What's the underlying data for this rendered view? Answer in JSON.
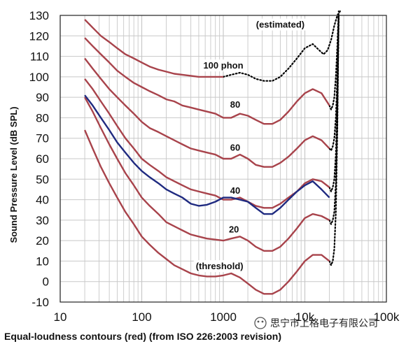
{
  "chart_data": {
    "type": "line",
    "xlabel": "Equal-loudness contours (red) (from ISO 226:2003 revision)",
    "ylabel": "Sound Pressure Level (dB SPL)",
    "x_scale": "log",
    "xlim": [
      10,
      100000
    ],
    "ylim": [
      -10,
      130
    ],
    "x_ticks": [
      {
        "value": 10,
        "label": "10"
      },
      {
        "value": 100,
        "label": "100"
      },
      {
        "value": 1000,
        "label": "1000"
      },
      {
        "value": 10000,
        "label": "10k"
      },
      {
        "value": 100000,
        "label": "100k"
      }
    ],
    "y_ticks": [
      -10,
      0,
      10,
      20,
      30,
      40,
      50,
      60,
      70,
      80,
      90,
      100,
      110,
      120,
      130
    ],
    "grid": true,
    "colors": {
      "contour": "#a8434b",
      "extra_curve": "#1f2a80",
      "estimated": "#000000",
      "grid": "#c8c8c8"
    },
    "series": [
      {
        "name": "(threshold)",
        "x": [
          20,
          25,
          31.5,
          40,
          50,
          63,
          80,
          100,
          125,
          160,
          200,
          250,
          315,
          400,
          500,
          630,
          800,
          1000,
          1250,
          1600,
          2000,
          2500,
          3150,
          4000,
          5000,
          6300,
          8000,
          10000,
          12500,
          16000,
          20000
        ],
        "y": [
          74,
          65,
          56,
          48,
          41,
          34,
          28,
          22,
          18,
          14,
          11,
          8,
          6,
          4,
          3,
          2.5,
          2.5,
          3,
          4,
          2,
          -1,
          -4,
          -6,
          -6,
          -4,
          0,
          5,
          10,
          13,
          13,
          10
        ]
      },
      {
        "name": "20",
        "x": [
          20,
          25,
          31.5,
          40,
          50,
          63,
          80,
          100,
          125,
          160,
          200,
          250,
          315,
          400,
          500,
          630,
          800,
          1000,
          1250,
          1600,
          2000,
          2500,
          3150,
          4000,
          5000,
          6300,
          8000,
          10000,
          12500,
          16000,
          20000
        ],
        "y": [
          90,
          83,
          75,
          67,
          60,
          53,
          47,
          41,
          37,
          33,
          29,
          27,
          25,
          23,
          22,
          21,
          20.5,
          20,
          21,
          22,
          20,
          17,
          15,
          15,
          17,
          21,
          26,
          31,
          33,
          32,
          30
        ]
      },
      {
        "name": "40",
        "x": [
          20,
          25,
          31.5,
          40,
          50,
          63,
          80,
          100,
          125,
          160,
          200,
          250,
          315,
          400,
          500,
          630,
          800,
          1000,
          1250,
          1600,
          2000,
          2500,
          3150,
          4000,
          5000,
          6300,
          8000,
          10000,
          12500,
          16000,
          20000
        ],
        "y": [
          99,
          94,
          88,
          82,
          76,
          70,
          65,
          60,
          57,
          54,
          51,
          49,
          47,
          45,
          44,
          43,
          42,
          40,
          40,
          41,
          39,
          37,
          36,
          36,
          38,
          41,
          44,
          48,
          50,
          49,
          46
        ]
      },
      {
        "name": "60",
        "x": [
          20,
          25,
          31.5,
          40,
          50,
          63,
          80,
          100,
          125,
          160,
          200,
          250,
          315,
          400,
          500,
          630,
          800,
          1000,
          1250,
          1600,
          2000,
          2500,
          3150,
          4000,
          5000,
          6300,
          8000,
          10000,
          12500,
          16000,
          20000
        ],
        "y": [
          109,
          104,
          99,
          94,
          90,
          86,
          82,
          78,
          75,
          73,
          71,
          69,
          67,
          65,
          64,
          63,
          62,
          60,
          60,
          62,
          60,
          57,
          56,
          56,
          58,
          61,
          65,
          69,
          71,
          69,
          65
        ]
      },
      {
        "name": "80",
        "x": [
          20,
          25,
          31.5,
          40,
          50,
          63,
          80,
          100,
          125,
          160,
          200,
          250,
          315,
          400,
          500,
          630,
          800,
          1000,
          1250,
          1600,
          2000,
          2500,
          3150,
          4000,
          5000,
          6300,
          8000,
          10000,
          12500,
          16000,
          20000
        ],
        "y": [
          119,
          115,
          111,
          107,
          103,
          100,
          97,
          95,
          93,
          91,
          89,
          88,
          86,
          85,
          84,
          83,
          82,
          80,
          80,
          82,
          81,
          79,
          77,
          77,
          79,
          83,
          88,
          92,
          94,
          92,
          86
        ]
      },
      {
        "name": "100 phon",
        "x": [
          20,
          25,
          31.5,
          40,
          50,
          63,
          80,
          100,
          125,
          160,
          200,
          250,
          315,
          400,
          500,
          630,
          800,
          1000
        ],
        "y": [
          128,
          124,
          120,
          117,
          114,
          111,
          109,
          107,
          105,
          103.5,
          102.5,
          101.5,
          101,
          100.5,
          100,
          100,
          100,
          100
        ]
      },
      {
        "name": "",
        "x": [
          20,
          25,
          31.5,
          40,
          50,
          63,
          80,
          100,
          125,
          160,
          200,
          250,
          315,
          400,
          500,
          630,
          800,
          1000,
          1250,
          1600,
          2000,
          2500,
          3150,
          4000,
          5000,
          6300,
          8000,
          10000,
          12500,
          16000,
          20000
        ],
        "y": [
          91,
          86,
          80,
          74,
          68,
          63,
          58,
          54,
          51,
          48,
          45,
          43,
          41,
          38,
          37,
          37.5,
          39,
          41,
          41,
          40,
          39,
          36,
          33,
          33,
          36,
          40,
          44,
          47,
          49,
          45,
          41
        ]
      }
    ],
    "estimated": {
      "label": "(estimated)",
      "segments": [
        {
          "x": [
            1000,
            1250,
            1600,
            2000,
            2500,
            3150,
            4000,
            5000,
            6300,
            8000,
            10000,
            12500,
            15000,
            17000,
            19000,
            21000,
            23000,
            25000,
            26000,
            27000
          ],
          "y": [
            100,
            101,
            102,
            101,
            99,
            98,
            98,
            100,
            104,
            109,
            114,
            116,
            113,
            111,
            113,
            118,
            125,
            130,
            131,
            132
          ]
        },
        {
          "x": [
            20000,
            21000,
            22000,
            23000,
            24000,
            25000,
            26000
          ],
          "y": [
            86,
            84,
            86,
            90,
            100,
            115,
            132
          ]
        },
        {
          "x": [
            20000,
            21000,
            22000,
            23000,
            24000,
            25000,
            26000
          ],
          "y": [
            65,
            64,
            66,
            70,
            80,
            100,
            130
          ]
        },
        {
          "x": [
            20000,
            21000,
            22000,
            23000,
            24000,
            25000,
            26000
          ],
          "y": [
            46,
            44,
            46,
            50,
            62,
            90,
            130
          ]
        },
        {
          "x": [
            20000,
            21000,
            22000,
            23000,
            24000,
            25000,
            26000
          ],
          "y": [
            30,
            28,
            30,
            34,
            48,
            80,
            130
          ]
        },
        {
          "x": [
            20000,
            21000,
            22000,
            23000,
            24000,
            25000,
            26000
          ],
          "y": [
            10,
            8,
            10,
            16,
            34,
            74,
            130
          ]
        }
      ]
    },
    "annotations": [
      {
        "text": "(estimated)",
        "x": 5000,
        "y": 124
      },
      {
        "text": "100 phon",
        "x": 1000,
        "y": 104
      },
      {
        "text": "80",
        "x": 1400,
        "y": 85
      },
      {
        "text": "60",
        "x": 1400,
        "y": 64
      },
      {
        "text": "40",
        "x": 1400,
        "y": 43
      },
      {
        "text": "20",
        "x": 1350,
        "y": 24
      },
      {
        "text": "(threshold)",
        "x": 900,
        "y": 6
      }
    ],
    "watermark": "思宁市上格电子有限公司"
  }
}
